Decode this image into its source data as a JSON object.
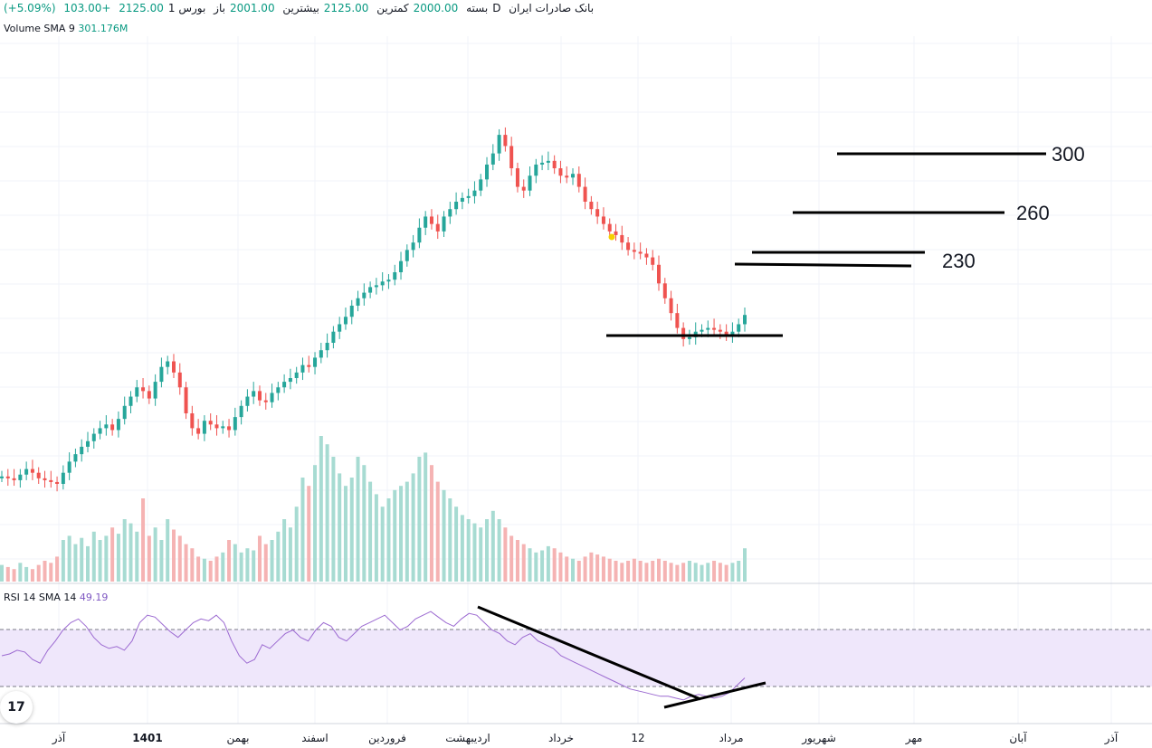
{
  "header": {
    "symbol": "بانک صادرات ایران",
    "interval": "1D",
    "exchange": "بورس",
    "open_label": "باز",
    "open": "2001.00",
    "high_label": "بیشترین",
    "high": "2125.00",
    "low_label": "کمترین",
    "low": "2000.00",
    "close_label": "بسته",
    "close": "2125.00",
    "change": "103.00+",
    "change_pct": "(+5.09%)"
  },
  "volume_legend": {
    "label": "Volume SMA 9",
    "value": "301.176M"
  },
  "rsi_legend": {
    "label": "RSI 14 SMA 14",
    "value": "49.19"
  },
  "colors": {
    "up": "#26a69a",
    "down": "#ef5350",
    "up_vol": "#a7dbd2",
    "down_vol": "#f5b3b3",
    "rsi": "#9c6ad1",
    "rsi_band": "#efe7fb"
  },
  "chart_data": {
    "type": "candlestick",
    "price_levels": [
      {
        "label": "300"
      },
      {
        "label": "260"
      },
      {
        "label": "230"
      }
    ],
    "x_labels": [
      "آذر",
      "1401",
      "بهمن",
      "اسفند",
      "فروردین",
      "اردیبهشت",
      "خرداد",
      "12",
      "مرداد",
      "شهریور",
      "مهر",
      "آبان",
      "آذر"
    ],
    "price_path": [
      0.04,
      0.03,
      0.02,
      0.05,
      0.08,
      0.06,
      0.03,
      0.02,
      0.01,
      0.0,
      0.06,
      0.12,
      0.16,
      0.2,
      0.23,
      0.27,
      0.3,
      0.32,
      0.29,
      0.35,
      0.42,
      0.47,
      0.52,
      0.5,
      0.46,
      0.55,
      0.63,
      0.66,
      0.6,
      0.52,
      0.38,
      0.3,
      0.27,
      0.34,
      0.32,
      0.3,
      0.31,
      0.29,
      0.36,
      0.42,
      0.47,
      0.5,
      0.45,
      0.44,
      0.49,
      0.52,
      0.55,
      0.57,
      0.6,
      0.64,
      0.63,
      0.68,
      0.72,
      0.76,
      0.82,
      0.86,
      0.9,
      0.96,
      1.0,
      1.03,
      1.06,
      1.07,
      1.09,
      1.1,
      1.14,
      1.2,
      1.26,
      1.3,
      1.38,
      1.44,
      1.4,
      1.36,
      1.44,
      1.48,
      1.52,
      1.54,
      1.55,
      1.58,
      1.64,
      1.72,
      1.78,
      1.88,
      1.82,
      1.7,
      1.6,
      1.58,
      1.66,
      1.72,
      1.73,
      1.74,
      1.7,
      1.66,
      1.65,
      1.67,
      1.6,
      1.52,
      1.48,
      1.44,
      1.4,
      1.36,
      1.34,
      1.3,
      1.26,
      1.25,
      1.24,
      1.22,
      1.18,
      1.08,
      1.0,
      0.92,
      0.84,
      0.78,
      0.79,
      0.82,
      0.83,
      0.84,
      0.83,
      0.82,
      0.8,
      0.82,
      0.86,
      0.91
    ],
    "volume_path": [
      0.08,
      0.07,
      0.06,
      0.09,
      0.07,
      0.06,
      0.08,
      0.1,
      0.09,
      0.12,
      0.2,
      0.22,
      0.18,
      0.21,
      0.17,
      0.24,
      0.2,
      0.22,
      0.26,
      0.23,
      0.3,
      0.28,
      0.24,
      0.4,
      0.22,
      0.26,
      0.2,
      0.3,
      0.25,
      0.22,
      0.18,
      0.16,
      0.12,
      0.11,
      0.1,
      0.12,
      0.14,
      0.2,
      0.18,
      0.14,
      0.16,
      0.15,
      0.22,
      0.18,
      0.2,
      0.24,
      0.3,
      0.26,
      0.36,
      0.5,
      0.46,
      0.56,
      0.7,
      0.66,
      0.6,
      0.52,
      0.46,
      0.5,
      0.6,
      0.56,
      0.48,
      0.42,
      0.36,
      0.4,
      0.44,
      0.46,
      0.48,
      0.52,
      0.6,
      0.62,
      0.56,
      0.48,
      0.44,
      0.4,
      0.36,
      0.32,
      0.3,
      0.28,
      0.26,
      0.3,
      0.34,
      0.3,
      0.26,
      0.22,
      0.2,
      0.18,
      0.16,
      0.14,
      0.15,
      0.17,
      0.16,
      0.14,
      0.12,
      0.11,
      0.1,
      0.12,
      0.14,
      0.13,
      0.12,
      0.11,
      0.1,
      0.09,
      0.1,
      0.11,
      0.1,
      0.09,
      0.1,
      0.11,
      0.1,
      0.09,
      0.08,
      0.09,
      0.1,
      0.09,
      0.08,
      0.09,
      0.1,
      0.09,
      0.08,
      0.09,
      0.1,
      0.16
    ],
    "rsi_path": [
      52,
      53,
      55,
      54,
      50,
      48,
      55,
      60,
      66,
      70,
      72,
      68,
      62,
      58,
      56,
      57,
      55,
      60,
      70,
      74,
      73,
      69,
      65,
      62,
      66,
      70,
      72,
      71,
      74,
      70,
      60,
      52,
      48,
      50,
      58,
      56,
      60,
      64,
      66,
      62,
      60,
      66,
      70,
      68,
      62,
      60,
      64,
      68,
      70,
      72,
      74,
      70,
      66,
      68,
      72,
      74,
      76,
      73,
      70,
      68,
      72,
      75,
      74,
      70,
      66,
      64,
      60,
      58,
      62,
      64,
      60,
      58,
      56,
      52,
      50,
      48,
      46,
      44,
      42,
      40,
      38,
      36,
      34,
      33,
      32,
      31,
      30,
      30,
      29,
      28,
      30,
      31,
      30,
      29,
      30,
      32,
      36,
      40
    ]
  }
}
